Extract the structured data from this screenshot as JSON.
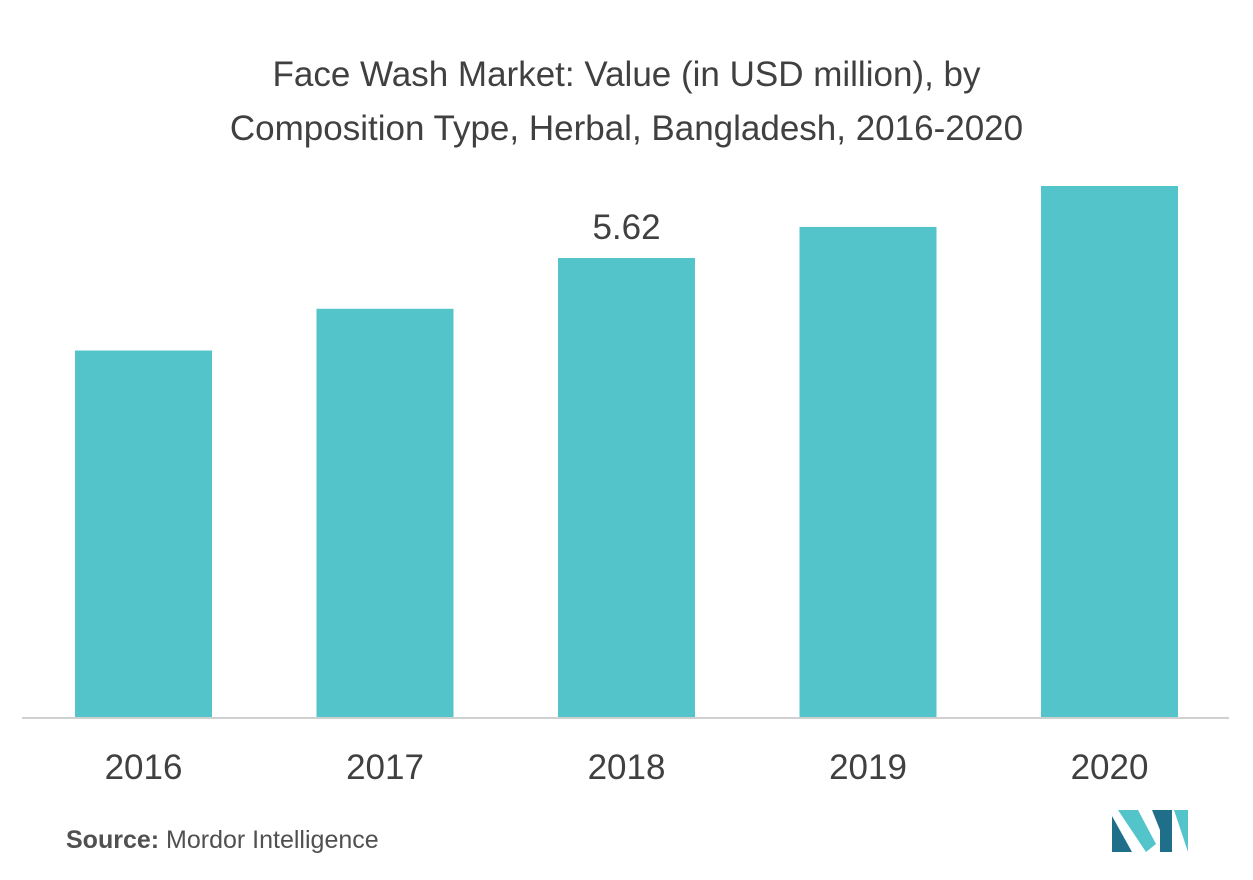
{
  "chart_data": {
    "type": "bar",
    "title_lines": [
      "Face Wash Market: Value (in USD million), by",
      "Composition Type, Herbal, Bangladesh, 2016-2020"
    ],
    "categories": [
      "2016",
      "2017",
      "2018",
      "2019",
      "2020"
    ],
    "values": [
      4.49,
      5.0,
      5.62,
      6.0,
      6.5
    ],
    "data_labels": [
      null,
      null,
      "5.62",
      null,
      null
    ],
    "xlabel": "",
    "ylabel": "",
    "ylim": [
      0,
      6.5
    ],
    "grid": false,
    "legend": "none",
    "bar_color": "#52c4ca",
    "axis_color": "#d0d0d0"
  },
  "source": {
    "label": "Source:",
    "text": "Mordor Intelligence"
  },
  "logo": {
    "icon": "mordor-intelligence-logo-icon",
    "colors": [
      "#1f6f8b",
      "#52c4ca"
    ]
  }
}
